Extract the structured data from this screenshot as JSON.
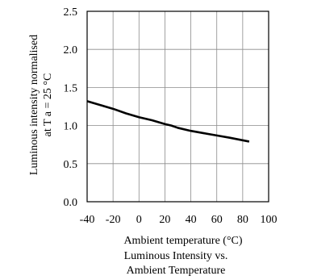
{
  "chart_data": {
    "type": "line",
    "title_lines": [
      "Luminous Intensity vs.",
      "Ambient Temperature"
    ],
    "xlabel": "Ambient temperature (°C)",
    "ylabel_lines": [
      "Luminous intensity normalised",
      "at T a = 25 °C"
    ],
    "xlim": [
      -40,
      100
    ],
    "ylim": [
      0.0,
      2.5
    ],
    "x_ticks": [
      -40,
      -20,
      0,
      20,
      40,
      60,
      80,
      100
    ],
    "x_tick_labels": [
      "-40",
      "-20",
      "0",
      "20",
      "40",
      "60",
      "80",
      "100"
    ],
    "y_ticks": [
      0.0,
      0.5,
      1.0,
      1.5,
      2.0,
      2.5
    ],
    "y_tick_labels": [
      "0.0",
      "0.5",
      "1.0",
      "1.5",
      "2.0",
      "2.5"
    ],
    "grid": true,
    "legend": "none",
    "series": [
      {
        "x": [
          -40,
          -30,
          -20,
          -10,
          0,
          10,
          20,
          25,
          30,
          40,
          50,
          60,
          70,
          85
        ],
        "y": [
          1.32,
          1.27,
          1.22,
          1.16,
          1.11,
          1.07,
          1.02,
          1.0,
          0.97,
          0.93,
          0.9,
          0.87,
          0.84,
          0.79
        ],
        "color": "#000000"
      }
    ]
  }
}
